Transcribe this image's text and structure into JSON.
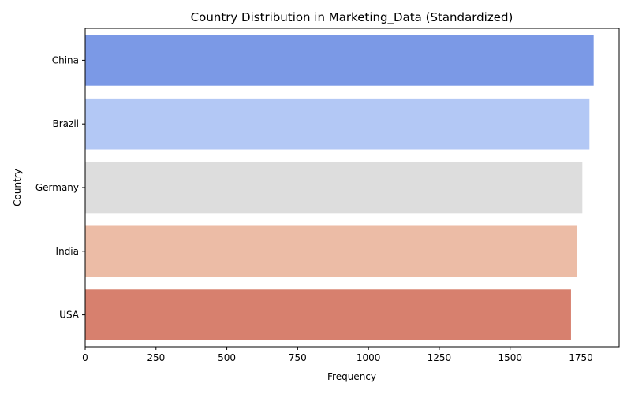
{
  "chart_data": {
    "type": "bar",
    "orientation": "horizontal",
    "title": "Country Distribution in Marketing_Data (Standardized)",
    "xlabel": "Frequency",
    "ylabel": "Country",
    "categories": [
      "China",
      "Brazil",
      "Germany",
      "India",
      "USA"
    ],
    "values": [
      1795,
      1780,
      1755,
      1735,
      1715
    ],
    "colors": [
      "#7b99e6",
      "#b3c8f5",
      "#dddddd",
      "#ecbca6",
      "#d7806e"
    ],
    "xlim": [
      0,
      1885
    ],
    "xticks": [
      0,
      250,
      500,
      750,
      1000,
      1250,
      1500,
      1750
    ],
    "grid": false,
    "legend": "none"
  }
}
